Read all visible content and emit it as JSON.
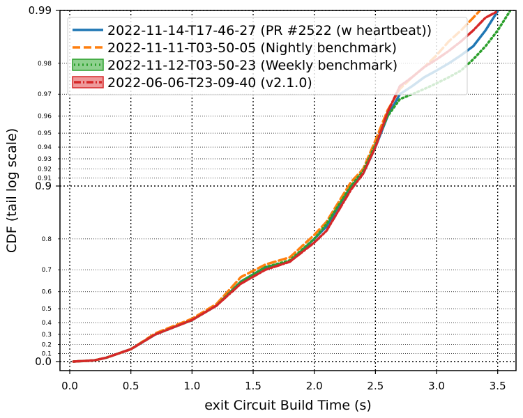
{
  "chart_data": {
    "type": "line",
    "xlabel": "exit Circuit Build Time (s)",
    "ylabel": "CDF (tail log scale)",
    "y_scale": "tail log (logit-like)",
    "xlim": [
      -0.08,
      3.65
    ],
    "ylim": [
      0.0,
      0.99
    ],
    "grid": true,
    "legend_placement": "top-left",
    "x_ticks": [
      {
        "value": 0.0,
        "label": "0.0"
      },
      {
        "value": 0.5,
        "label": "0.5"
      },
      {
        "value": 1.0,
        "label": "1.0"
      },
      {
        "value": 1.5,
        "label": "1.5"
      },
      {
        "value": 2.0,
        "label": "2.0"
      },
      {
        "value": 2.5,
        "label": "2.5"
      },
      {
        "value": 3.0,
        "label": "3.0"
      },
      {
        "value": 3.5,
        "label": "3.5"
      }
    ],
    "y_ticks_major": [
      {
        "value": 0.0,
        "label": "0.0"
      },
      {
        "value": 0.9,
        "label": "0.9"
      },
      {
        "value": 0.99,
        "label": "0.99"
      }
    ],
    "y_ticks_minor": [
      {
        "value": 0.1,
        "label": "0.1"
      },
      {
        "value": 0.2,
        "label": "0.2"
      },
      {
        "value": 0.3,
        "label": "0.3"
      },
      {
        "value": 0.4,
        "label": "0.4"
      },
      {
        "value": 0.5,
        "label": "0.5"
      },
      {
        "value": 0.6,
        "label": "0.6"
      },
      {
        "value": 0.7,
        "label": "0.7"
      },
      {
        "value": 0.8,
        "label": "0.8"
      },
      {
        "value": 0.91,
        "label": "0.91"
      },
      {
        "value": 0.92,
        "label": "0.92"
      },
      {
        "value": 0.93,
        "label": "0.93"
      },
      {
        "value": 0.94,
        "label": "0.94"
      },
      {
        "value": 0.95,
        "label": "0.95"
      },
      {
        "value": 0.96,
        "label": "0.96"
      },
      {
        "value": 0.97,
        "label": "0.97"
      },
      {
        "value": 0.98,
        "label": "0.98"
      }
    ],
    "series": [
      {
        "name": "2022-11-14-T17-46-27 (PR #2522 (w heartbeat))",
        "color": "#1f77b4",
        "style": "solid",
        "x": [
          0.03,
          0.2,
          0.3,
          0.5,
          0.7,
          1.0,
          1.2,
          1.4,
          1.6,
          1.8,
          2.0,
          2.1,
          2.3,
          2.4,
          2.5,
          2.6,
          2.7,
          2.8,
          2.9,
          3.0,
          3.1,
          3.2,
          3.3,
          3.4,
          3.5
        ],
        "y": [
          0.0,
          0.015,
          0.05,
          0.15,
          0.3,
          0.42,
          0.52,
          0.65,
          0.71,
          0.73,
          0.8,
          0.83,
          0.9,
          0.915,
          0.94,
          0.96,
          0.97,
          0.973,
          0.976,
          0.978,
          0.98,
          0.982,
          0.984,
          0.987,
          0.99
        ]
      },
      {
        "name": "2022-11-11-T03-50-05 (Nightly benchmark)",
        "color": "#ff7f0e",
        "style": "dashed",
        "x": [
          0.03,
          0.2,
          0.3,
          0.5,
          0.7,
          1.0,
          1.2,
          1.4,
          1.6,
          1.8,
          2.0,
          2.1,
          2.3,
          2.4,
          2.5,
          2.6,
          2.7,
          2.8,
          2.9,
          3.0,
          3.1,
          3.2,
          3.3,
          3.35
        ],
        "y": [
          0.0,
          0.015,
          0.05,
          0.15,
          0.31,
          0.43,
          0.53,
          0.67,
          0.72,
          0.745,
          0.81,
          0.84,
          0.905,
          0.92,
          0.945,
          0.963,
          0.972,
          0.976,
          0.979,
          0.982,
          0.985,
          0.987,
          0.989,
          0.99
        ]
      },
      {
        "name": "2022-11-12-T03-50-23 (Weekly benchmark)",
        "color": "#2ca02c",
        "style": "dotted",
        "x": [
          0.03,
          0.2,
          0.3,
          0.5,
          0.7,
          1.0,
          1.2,
          1.4,
          1.6,
          1.8,
          2.0,
          2.1,
          2.3,
          2.4,
          2.5,
          2.6,
          2.7,
          2.8,
          2.9,
          3.0,
          3.1,
          3.2,
          3.3,
          3.4,
          3.5,
          3.6
        ],
        "y": [
          0.0,
          0.015,
          0.05,
          0.15,
          0.3,
          0.42,
          0.52,
          0.65,
          0.71,
          0.735,
          0.8,
          0.835,
          0.9,
          0.918,
          0.942,
          0.96,
          0.968,
          0.97,
          0.972,
          0.974,
          0.976,
          0.978,
          0.981,
          0.984,
          0.987,
          0.99
        ]
      },
      {
        "name": "2022-06-06-T23-09-40 (v2.1.0)",
        "color": "#d62728",
        "style": "dashdot",
        "x": [
          0.03,
          0.2,
          0.3,
          0.5,
          0.7,
          1.0,
          1.2,
          1.4,
          1.6,
          1.8,
          2.0,
          2.1,
          2.3,
          2.4,
          2.5,
          2.6,
          2.7,
          2.8,
          2.9,
          3.0,
          3.1,
          3.2,
          3.3,
          3.4,
          3.5
        ],
        "y": [
          0.0,
          0.015,
          0.05,
          0.15,
          0.3,
          0.42,
          0.52,
          0.64,
          0.7,
          0.73,
          0.79,
          0.82,
          0.895,
          0.915,
          0.94,
          0.962,
          0.973,
          0.976,
          0.979,
          0.981,
          0.983,
          0.985,
          0.987,
          0.989,
          0.99
        ]
      }
    ]
  }
}
